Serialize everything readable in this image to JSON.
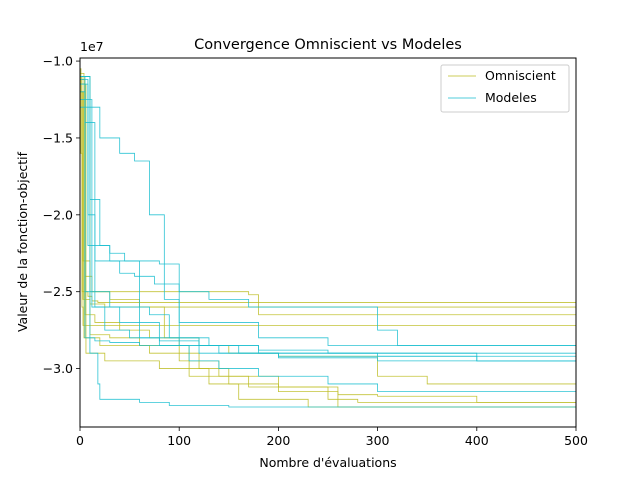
{
  "chart_data": {
    "type": "line",
    "title": "Convergence Omniscient vs Modeles",
    "xlabel": "Nombre d'évaluations",
    "ylabel": "Valeur de la fonction-objectif",
    "offset_label": "1e7",
    "xlim": [
      0,
      500
    ],
    "ylim": [
      -3.38,
      -0.98
    ],
    "x_ticks": [
      0,
      100,
      200,
      300,
      400,
      500
    ],
    "x_tick_labels": [
      "0",
      "100",
      "200",
      "300",
      "400",
      "500"
    ],
    "y_ticks": [
      -1.0,
      -1.5,
      -2.0,
      -2.5,
      -3.0
    ],
    "y_tick_labels": [
      "−1.0",
      "−1.5",
      "−2.0",
      "−2.5",
      "−3.0"
    ],
    "grid": false,
    "legend_position": "top-right",
    "legend": [
      {
        "label": "Omniscient",
        "color": "#bcbd22"
      },
      {
        "label": "Modeles",
        "color": "#17becf"
      }
    ],
    "series": [
      {
        "group": "Omniscient",
        "color": "#bcbd22",
        "points": [
          [
            0,
            -1.05
          ],
          [
            1,
            -1.6
          ],
          [
            2,
            -2.6
          ],
          [
            3,
            -2.72
          ],
          [
            500,
            -2.72
          ]
        ]
      },
      {
        "group": "Omniscient",
        "color": "#bcbd22",
        "points": [
          [
            0,
            -1.1
          ],
          [
            2,
            -2.5
          ],
          [
            8,
            -2.53
          ],
          [
            12,
            -2.56
          ],
          [
            18,
            -2.57
          ],
          [
            500,
            -2.61
          ]
        ]
      },
      {
        "group": "Omniscient",
        "color": "#bcbd22",
        "points": [
          [
            0,
            -1.15
          ],
          [
            5,
            -2.4
          ],
          [
            12,
            -2.5
          ],
          [
            60,
            -2.5
          ],
          [
            170,
            -2.52
          ],
          [
            180,
            -2.65
          ],
          [
            500,
            -2.82
          ]
        ]
      },
      {
        "group": "Omniscient",
        "color": "#bcbd22",
        "points": [
          [
            0,
            -1.2
          ],
          [
            3,
            -2.55
          ],
          [
            10,
            -2.58
          ],
          [
            25,
            -2.6
          ],
          [
            500,
            -2.65
          ]
        ]
      },
      {
        "group": "Omniscient",
        "color": "#bcbd22",
        "points": [
          [
            0,
            -1.1
          ],
          [
            10,
            -2.78
          ],
          [
            30,
            -2.8
          ],
          [
            60,
            -2.85
          ],
          [
            110,
            -2.9
          ],
          [
            120,
            -3.0
          ],
          [
            150,
            -3.1
          ],
          [
            200,
            -3.12
          ],
          [
            260,
            -3.25
          ],
          [
            300,
            -3.25
          ],
          [
            500,
            -3.27
          ]
        ]
      },
      {
        "group": "Omniscient",
        "color": "#bcbd22",
        "points": [
          [
            0,
            -1.12
          ],
          [
            5,
            -2.65
          ],
          [
            15,
            -2.7
          ],
          [
            40,
            -2.75
          ],
          [
            70,
            -2.8
          ],
          [
            100,
            -2.95
          ],
          [
            140,
            -3.05
          ],
          [
            200,
            -3.15
          ],
          [
            260,
            -3.17
          ],
          [
            300,
            -3.18
          ],
          [
            400,
            -3.22
          ],
          [
            500,
            -3.22
          ]
        ]
      },
      {
        "group": "Omniscient",
        "color": "#bcbd22",
        "points": [
          [
            0,
            -1.08
          ],
          [
            4,
            -2.8
          ],
          [
            20,
            -2.85
          ],
          [
            70,
            -2.9
          ],
          [
            110,
            -3.05
          ],
          [
            130,
            -3.1
          ],
          [
            160,
            -3.2
          ],
          [
            230,
            -3.25
          ],
          [
            290,
            -3.25
          ],
          [
            500,
            -3.26
          ]
        ]
      },
      {
        "group": "Omniscient",
        "color": "#bcbd22",
        "points": [
          [
            0,
            -1.2
          ],
          [
            3,
            -2.3
          ],
          [
            10,
            -2.5
          ],
          [
            30,
            -2.55
          ],
          [
            60,
            -2.6
          ],
          [
            85,
            -2.8
          ],
          [
            120,
            -2.85
          ],
          [
            150,
            -2.9
          ],
          [
            200,
            -2.92
          ],
          [
            300,
            -3.05
          ],
          [
            350,
            -3.1
          ],
          [
            500,
            -3.1
          ]
        ]
      },
      {
        "group": "Omniscient",
        "color": "#bcbd22",
        "points": [
          [
            0,
            -1.15
          ],
          [
            6,
            -2.9
          ],
          [
            25,
            -2.95
          ],
          [
            80,
            -3.0
          ],
          [
            130,
            -3.05
          ],
          [
            170,
            -3.12
          ],
          [
            250,
            -3.2
          ],
          [
            280,
            -3.22
          ],
          [
            500,
            -3.28
          ]
        ]
      },
      {
        "group": "Modeles",
        "color": "#17becf",
        "points": [
          [
            0,
            -1.3
          ],
          [
            20,
            -1.5
          ],
          [
            40,
            -1.6
          ],
          [
            55,
            -1.65
          ],
          [
            70,
            -2.0
          ],
          [
            85,
            -2.55
          ],
          [
            100,
            -2.7
          ],
          [
            180,
            -2.8
          ],
          [
            250,
            -2.85
          ],
          [
            500,
            -2.9
          ]
        ]
      },
      {
        "group": "Modeles",
        "color": "#17becf",
        "points": [
          [
            0,
            -1.1
          ],
          [
            5,
            -1.4
          ],
          [
            15,
            -2.5
          ],
          [
            30,
            -2.6
          ],
          [
            70,
            -2.65
          ],
          [
            90,
            -2.8
          ],
          [
            130,
            -2.85
          ],
          [
            180,
            -2.88
          ],
          [
            250,
            -2.9
          ],
          [
            400,
            -2.95
          ],
          [
            500,
            -2.95
          ]
        ]
      },
      {
        "group": "Modeles",
        "color": "#17becf",
        "points": [
          [
            0,
            -1.15
          ],
          [
            8,
            -2.0
          ],
          [
            15,
            -2.3
          ],
          [
            40,
            -2.38
          ],
          [
            55,
            -2.4
          ],
          [
            75,
            -2.45
          ],
          [
            100,
            -2.5
          ],
          [
            130,
            -2.55
          ],
          [
            170,
            -2.6
          ],
          [
            300,
            -2.75
          ],
          [
            320,
            -2.85
          ],
          [
            500,
            -2.85
          ]
        ]
      },
      {
        "group": "Modeles",
        "color": "#17becf",
        "points": [
          [
            0,
            -1.1
          ],
          [
            10,
            -1.9
          ],
          [
            20,
            -2.2
          ],
          [
            30,
            -2.25
          ],
          [
            45,
            -2.3
          ],
          [
            80,
            -2.32
          ],
          [
            100,
            -2.8
          ],
          [
            120,
            -2.85
          ],
          [
            160,
            -2.9
          ],
          [
            220,
            -2.9
          ],
          [
            300,
            -2.92
          ],
          [
            400,
            -2.95
          ],
          [
            500,
            -2.95
          ]
        ]
      },
      {
        "group": "Modeles",
        "color": "#17becf",
        "points": [
          [
            0,
            -1.15
          ],
          [
            5,
            -2.5
          ],
          [
            15,
            -2.6
          ],
          [
            40,
            -2.7
          ],
          [
            60,
            -2.8
          ],
          [
            100,
            -2.85
          ],
          [
            140,
            -2.9
          ],
          [
            200,
            -2.93
          ],
          [
            300,
            -2.95
          ],
          [
            500,
            -2.97
          ]
        ]
      },
      {
        "group": "Modeles",
        "color": "#17becf",
        "points": [
          [
            0,
            -1.2
          ],
          [
            5,
            -2.8
          ],
          [
            15,
            -2.82
          ],
          [
            30,
            -2.83
          ],
          [
            60,
            -2.85
          ],
          [
            120,
            -2.9
          ],
          [
            200,
            -2.92
          ],
          [
            500,
            -2.92
          ]
        ]
      },
      {
        "group": "Modeles",
        "color": "#17becf",
        "points": [
          [
            0,
            -1.1
          ],
          [
            10,
            -2.9
          ],
          [
            18,
            -3.1
          ],
          [
            20,
            -3.2
          ],
          [
            60,
            -3.22
          ],
          [
            90,
            -3.24
          ],
          [
            150,
            -3.25
          ],
          [
            300,
            -3.25
          ],
          [
            500,
            -3.26
          ]
        ]
      },
      {
        "group": "Modeles",
        "color": "#17becf",
        "points": [
          [
            0,
            -1.12
          ],
          [
            8,
            -2.2
          ],
          [
            30,
            -2.3
          ],
          [
            60,
            -2.7
          ],
          [
            80,
            -2.85
          ],
          [
            110,
            -2.95
          ],
          [
            140,
            -3.0
          ],
          [
            180,
            -3.05
          ],
          [
            250,
            -3.1
          ],
          [
            300,
            -3.15
          ],
          [
            500,
            -3.15
          ]
        ]
      },
      {
        "group": "Modeles",
        "color": "#17becf",
        "points": [
          [
            0,
            -1.25
          ],
          [
            12,
            -2.6
          ],
          [
            25,
            -2.75
          ],
          [
            50,
            -2.8
          ],
          [
            80,
            -2.82
          ],
          [
            120,
            -2.85
          ],
          [
            180,
            -2.9
          ],
          [
            250,
            -2.9
          ],
          [
            500,
            -2.95
          ]
        ]
      }
    ]
  }
}
